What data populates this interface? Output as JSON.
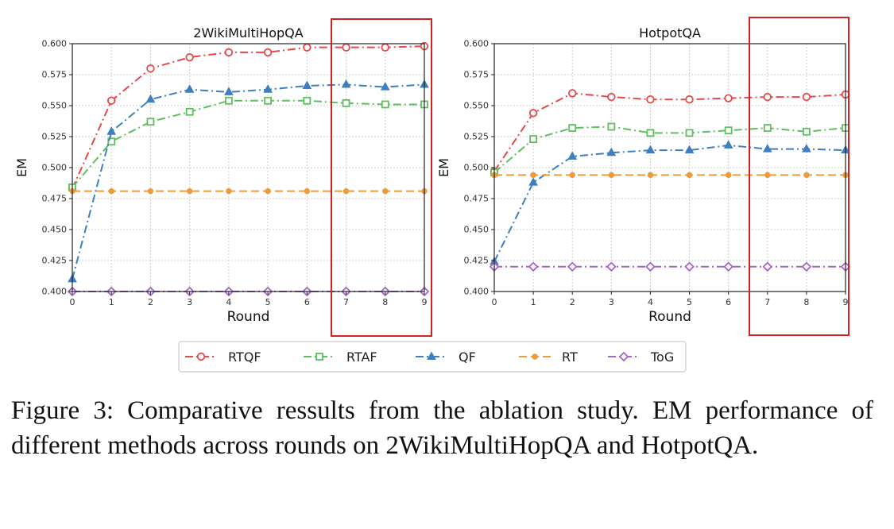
{
  "colors": {
    "RTQF": "#e8484b",
    "RTAF": "#5fbf5f",
    "QF": "#3f7fc0",
    "RT": "#f29a3a",
    "ToG": "#a665c7",
    "highlight": "#d42020",
    "grid": "#cfcfcf",
    "axis": "#222222"
  },
  "chart_data": [
    {
      "type": "line",
      "title": "2WikiMultiHopQA",
      "xlabel": "Round",
      "ylabel": "EM",
      "xlim": [
        0,
        9
      ],
      "ylim": [
        0.4,
        0.6
      ],
      "grid": true,
      "x_ticks": [
        "0",
        "1",
        "2",
        "3",
        "4",
        "5",
        "6",
        "7",
        "8",
        "9"
      ],
      "y_ticks": [
        "0.400",
        "0.425",
        "0.450",
        "0.475",
        "0.500",
        "0.525",
        "0.550",
        "0.575",
        "0.600"
      ],
      "highlight_x_range": [
        7,
        9
      ],
      "x": [
        0,
        1,
        2,
        3,
        4,
        5,
        6,
        7,
        8,
        9
      ],
      "series": [
        {
          "name": "RTQF",
          "marker": "circle",
          "values": [
            0.483,
            0.554,
            0.58,
            0.589,
            0.593,
            0.593,
            0.597,
            0.597,
            0.597,
            0.598
          ]
        },
        {
          "name": "RTAF",
          "marker": "square",
          "values": [
            0.484,
            0.521,
            0.537,
            0.545,
            0.554,
            0.554,
            0.554,
            0.552,
            0.551,
            0.551
          ]
        },
        {
          "name": "QF",
          "marker": "triangle",
          "values": [
            0.41,
            0.529,
            0.555,
            0.563,
            0.561,
            0.563,
            0.566,
            0.567,
            0.565,
            0.567
          ]
        },
        {
          "name": "RT",
          "marker": "dot",
          "values": [
            0.481,
            0.481,
            0.481,
            0.481,
            0.481,
            0.481,
            0.481,
            0.481,
            0.481,
            0.481
          ]
        },
        {
          "name": "ToG",
          "marker": "diamond",
          "values": [
            0.4,
            0.4,
            0.4,
            0.4,
            0.4,
            0.4,
            0.4,
            0.4,
            0.4,
            0.4
          ]
        }
      ]
    },
    {
      "type": "line",
      "title": "HotpotQA",
      "xlabel": "Round",
      "ylabel": "EM",
      "xlim": [
        0,
        9
      ],
      "ylim": [
        0.4,
        0.6
      ],
      "grid": true,
      "x_ticks": [
        "0",
        "1",
        "2",
        "3",
        "4",
        "5",
        "6",
        "7",
        "8",
        "9"
      ],
      "y_ticks": [
        "0.400",
        "0.425",
        "0.450",
        "0.475",
        "0.500",
        "0.525",
        "0.550",
        "0.575",
        "0.600"
      ],
      "highlight_x_range": [
        7,
        9
      ],
      "x": [
        0,
        1,
        2,
        3,
        4,
        5,
        6,
        7,
        8,
        9
      ],
      "series": [
        {
          "name": "RTQF",
          "marker": "circle",
          "values": [
            0.497,
            0.544,
            0.56,
            0.557,
            0.555,
            0.555,
            0.556,
            0.557,
            0.557,
            0.559
          ]
        },
        {
          "name": "RTAF",
          "marker": "square",
          "values": [
            0.496,
            0.523,
            0.532,
            0.533,
            0.528,
            0.528,
            0.53,
            0.532,
            0.529,
            0.532
          ]
        },
        {
          "name": "QF",
          "marker": "triangle",
          "values": [
            0.424,
            0.488,
            0.509,
            0.512,
            0.514,
            0.514,
            0.518,
            0.515,
            0.515,
            0.514
          ]
        },
        {
          "name": "RT",
          "marker": "dot",
          "values": [
            0.494,
            0.494,
            0.494,
            0.494,
            0.494,
            0.494,
            0.494,
            0.494,
            0.494,
            0.494
          ]
        },
        {
          "name": "ToG",
          "marker": "diamond",
          "values": [
            0.42,
            0.42,
            0.42,
            0.42,
            0.42,
            0.42,
            0.42,
            0.42,
            0.42,
            0.42
          ]
        }
      ]
    }
  ],
  "legend": {
    "position": "bottom-center",
    "entries": [
      "RTQF",
      "RTAF",
      "QF",
      "RT",
      "ToG"
    ]
  },
  "caption": {
    "text": "Figure 3: Comparative ressults from the ablation study. EM performance of different methods across rounds on 2WikiMultiHopQA and HotpotQA."
  }
}
